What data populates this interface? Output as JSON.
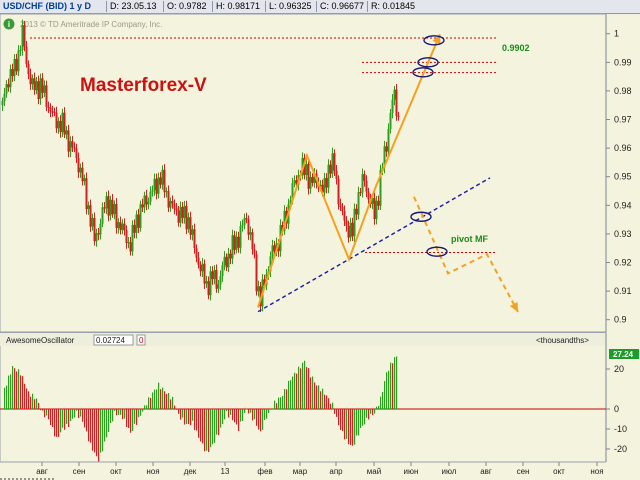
{
  "header": {
    "symbol": "USD/CHF (BID) 1 y D",
    "date": "D: 23.05.13",
    "open": "O: 0.9782",
    "high": "H: 0.98171",
    "low": "L: 0.96325",
    "close": "C: 0.96677",
    "range": "R: 0.01845"
  },
  "copyright": "2013 © TD Ameritrade IP Company, Inc.",
  "info_icon": "i",
  "watermark": "Masterforex-V",
  "annotations": {
    "level_label": "0.9902",
    "pivot_label": "pivot MF"
  },
  "oscillator": {
    "name": "AwesomeOscillator",
    "value": "0.02724",
    "flag": "0",
    "unit": "<thousandths>",
    "last_value_badge": "27.24",
    "ticks": [
      "20",
      "0",
      "-10",
      "-20"
    ]
  },
  "colors": {
    "up": "#2e9e1e",
    "down": "#d21f1f",
    "wedge": "#f5a01e",
    "trend": "#1a1aa8",
    "pivot": "#cc0000",
    "ellipse": "#191970",
    "watermark": "#cc1111",
    "label_green": "#1c8a1c",
    "badge": "#1d9c2b"
  },
  "chart_data": [
    {
      "type": "candlestick",
      "title": "",
      "xlabel": "",
      "ylabel": "",
      "x_ticks": [
        "авг",
        "сен",
        "окт",
        "ноя",
        "дек",
        "13",
        "фев",
        "мар",
        "апр",
        "май",
        "июн",
        "июл",
        "авг",
        "сен",
        "окт",
        "ноя"
      ],
      "y_ticks": [
        1.0,
        0.99,
        0.98,
        0.97,
        0.96,
        0.95,
        0.94,
        0.93,
        0.92,
        0.91,
        0.9
      ],
      "ylim": [
        0.8985,
        1.0048
      ],
      "close_path": [
        [
          0,
          0.975
        ],
        [
          6,
          0.985
        ],
        [
          12,
          0.987
        ],
        [
          20,
          1.0
        ],
        [
          24,
          0.99
        ],
        [
          30,
          0.981
        ],
        [
          38,
          0.982
        ],
        [
          46,
          0.975
        ],
        [
          52,
          0.97
        ],
        [
          60,
          0.968
        ],
        [
          68,
          0.961
        ],
        [
          74,
          0.957
        ],
        [
          80,
          0.949
        ],
        [
          86,
          0.939
        ],
        [
          92,
          0.928
        ],
        [
          98,
          0.934
        ],
        [
          104,
          0.942
        ],
        [
          110,
          0.938
        ],
        [
          116,
          0.934
        ],
        [
          122,
          0.93
        ],
        [
          128,
          0.926
        ],
        [
          134,
          0.935
        ],
        [
          142,
          0.941
        ],
        [
          150,
          0.945
        ],
        [
          158,
          0.95
        ],
        [
          164,
          0.944
        ],
        [
          170,
          0.939
        ],
        [
          178,
          0.937
        ],
        [
          186,
          0.935
        ],
        [
          192,
          0.925
        ],
        [
          198,
          0.918
        ],
        [
          204,
          0.912
        ],
        [
          210,
          0.915
        ],
        [
          216,
          0.913
        ],
        [
          222,
          0.92
        ],
        [
          230,
          0.925
        ],
        [
          236,
          0.929
        ],
        [
          244,
          0.936
        ],
        [
          250,
          0.925
        ],
        [
          254,
          0.914
        ],
        [
          258,
          0.907
        ],
        [
          262,
          0.913
        ],
        [
          268,
          0.922
        ],
        [
          274,
          0.926
        ],
        [
          280,
          0.932
        ],
        [
          286,
          0.94
        ],
        [
          292,
          0.948
        ],
        [
          298,
          0.952
        ],
        [
          304,
          0.953
        ],
        [
          308,
          0.947
        ],
        [
          314,
          0.95
        ],
        [
          320,
          0.944
        ],
        [
          326,
          0.953
        ],
        [
          332,
          0.954
        ],
        [
          338,
          0.938
        ],
        [
          344,
          0.933
        ],
        [
          350,
          0.93
        ],
        [
          354,
          0.941
        ],
        [
          358,
          0.946
        ],
        [
          362,
          0.949
        ],
        [
          366,
          0.943
        ],
        [
          372,
          0.937
        ],
        [
          376,
          0.944
        ],
        [
          380,
          0.954
        ],
        [
          384,
          0.962
        ],
        [
          388,
          0.972
        ],
        [
          392,
          0.979
        ],
        [
          396,
          0.97
        ]
      ],
      "oscillator_ylim": [
        -26,
        28
      ],
      "oscillator_path": [
        [
          2,
          10
        ],
        [
          10,
          21
        ],
        [
          18,
          18
        ],
        [
          26,
          8
        ],
        [
          34,
          5
        ],
        [
          40,
          -2
        ],
        [
          46,
          -5
        ],
        [
          54,
          -15
        ],
        [
          60,
          -10
        ],
        [
          66,
          -8
        ],
        [
          74,
          -2
        ],
        [
          80,
          -6
        ],
        [
          88,
          -18
        ],
        [
          96,
          -26
        ],
        [
          104,
          -14
        ],
        [
          112,
          -2
        ],
        [
          120,
          -4
        ],
        [
          128,
          -12
        ],
        [
          136,
          -5
        ],
        [
          144,
          3
        ],
        [
          150,
          8
        ],
        [
          156,
          12
        ],
        [
          162,
          9
        ],
        [
          170,
          5
        ],
        [
          176,
          -3
        ],
        [
          184,
          -8
        ],
        [
          190,
          -7
        ],
        [
          196,
          -14
        ],
        [
          204,
          -22
        ],
        [
          210,
          -18
        ],
        [
          218,
          -10
        ],
        [
          224,
          -2
        ],
        [
          230,
          -5
        ],
        [
          236,
          -10
        ],
        [
          244,
          0
        ],
        [
          252,
          -6
        ],
        [
          258,
          -12
        ],
        [
          264,
          -4
        ],
        [
          272,
          3
        ],
        [
          280,
          7
        ],
        [
          288,
          15
        ],
        [
          296,
          20
        ],
        [
          302,
          24
        ],
        [
          308,
          17
        ],
        [
          314,
          12
        ],
        [
          322,
          8
        ],
        [
          330,
          2
        ],
        [
          336,
          -8
        ],
        [
          344,
          -16
        ],
        [
          350,
          -19
        ],
        [
          358,
          -10
        ],
        [
          366,
          -4
        ],
        [
          372,
          -2
        ],
        [
          378,
          5
        ],
        [
          384,
          18
        ],
        [
          390,
          24
        ],
        [
          395,
          27
        ]
      ],
      "trendline": [
        [
          258,
          0.9028
        ],
        [
          490,
          0.9496
        ]
      ],
      "level_lines": [
        0.9985,
        0.99,
        0.9864,
        0.9235
      ],
      "pivot_level": 0.9235,
      "wedge_path": [
        [
          258,
          0.9043
        ],
        [
          307,
          0.9574
        ],
        [
          349,
          0.9211
        ],
        [
          376,
          0.9467
        ],
        [
          440,
          0.9998
        ]
      ],
      "projection_path": [
        [
          414,
          0.943
        ],
        [
          448,
          0.9162
        ],
        [
          487,
          0.9229
        ],
        [
          518,
          0.9027
        ]
      ],
      "ellipses": [
        [
          434,
          0.9977
        ],
        [
          428,
          0.99
        ],
        [
          423,
          0.9865
        ],
        [
          421,
          0.936
        ],
        [
          437,
          0.9238
        ]
      ]
    }
  ]
}
